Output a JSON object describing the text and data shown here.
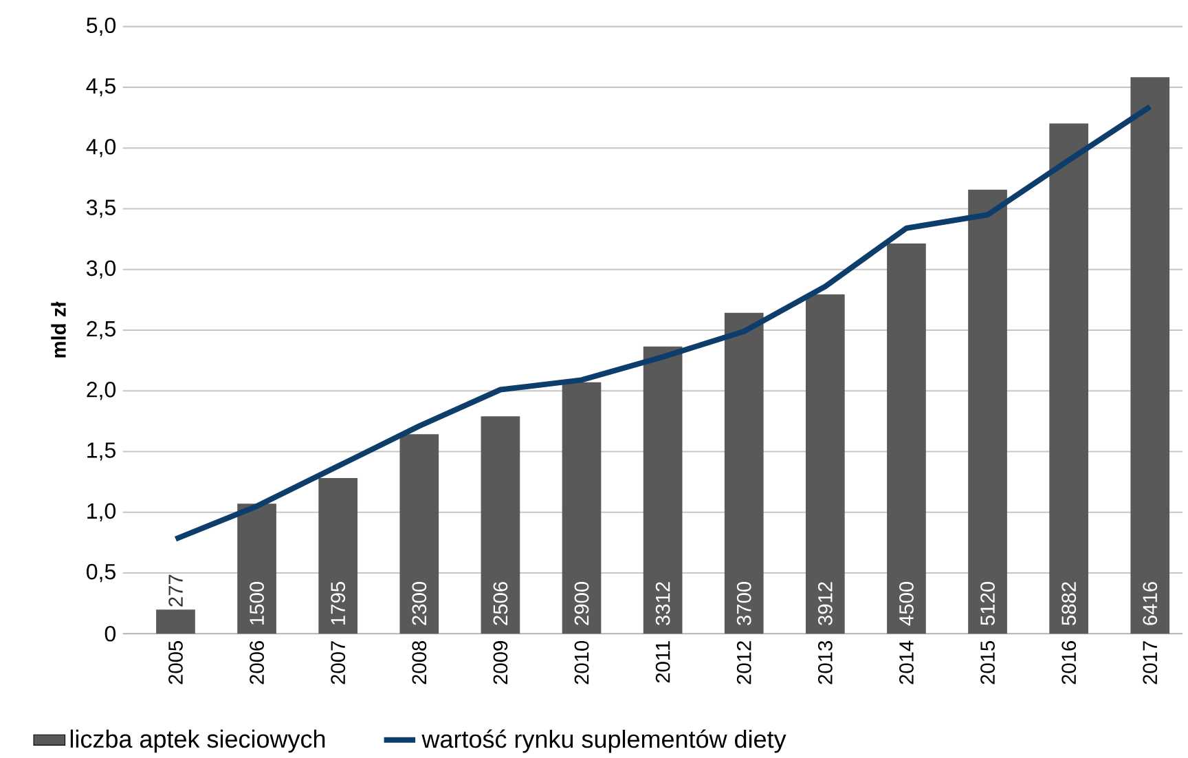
{
  "chart_data": {
    "type": "bar",
    "ylabel": "mld zł",
    "categories": [
      "2005",
      "2006",
      "2007",
      "2008",
      "2009",
      "2010",
      "2011",
      "2012",
      "2013",
      "2014",
      "2015",
      "2016",
      "2017"
    ],
    "series": [
      {
        "name": "liczba aptek sieciowych",
        "axis": "y2",
        "color": "#595959",
        "values": [
          277,
          1500,
          1795,
          2300,
          2506,
          2900,
          3312,
          3700,
          3912,
          4500,
          5120,
          5882,
          6416
        ],
        "value_labels": [
          "277",
          "1500",
          "1795",
          "2300",
          "2506",
          "2900",
          "3312",
          "3700",
          "3912",
          "4500",
          "5120",
          "5882",
          "6416"
        ]
      },
      {
        "name": "wartość rynku suplementów diety",
        "type": "line",
        "color": "#0d3d6b",
        "values": [
          0.78,
          1.05,
          1.38,
          1.71,
          2.01,
          2.09,
          2.28,
          2.49,
          2.86,
          3.34,
          3.45,
          3.9,
          4.34
        ]
      }
    ],
    "ylim": [
      0,
      5
    ],
    "yticks": [
      0,
      {
        "value": 0.5,
        "label": "0,5"
      },
      {
        "value": 1,
        "label": "1,0"
      },
      {
        "value": 1.5,
        "label": "1,5"
      },
      {
        "value": 2,
        "label": "2,0"
      },
      {
        "value": 2.5,
        "label": "2,5"
      },
      {
        "value": 3,
        "label": "3,0"
      },
      {
        "value": 3.5,
        "label": "3,5"
      },
      {
        "value": 4,
        "label": "4,0"
      },
      {
        "value": 4.5,
        "label": "4,5"
      },
      {
        "value": 5,
        "label": "5,0"
      }
    ],
    "y2lim": [
      0,
      7000
    ],
    "grid": "y",
    "legend": "bottom"
  }
}
